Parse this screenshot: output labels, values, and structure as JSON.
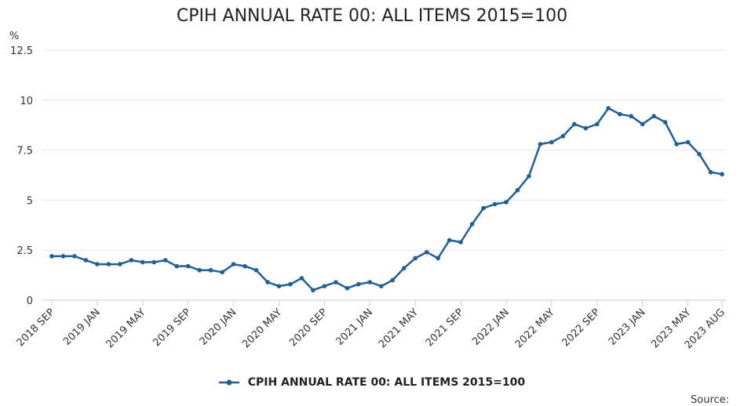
{
  "chart_data": {
    "type": "line",
    "title": "CPIH ANNUAL RATE 00: ALL ITEMS 2015=100",
    "ylabel": "%",
    "ylim": [
      0,
      12.5
    ],
    "yticks": [
      "0",
      "2.5",
      "5",
      "7.5",
      "10",
      "12.5"
    ],
    "xtick_labels": [
      "2018 SEP",
      "2019 JAN",
      "2019 MAY",
      "2019 SEP",
      "2020 JAN",
      "2020 MAY",
      "2020 SEP",
      "2021 JAN",
      "2021 MAY",
      "2021 SEP",
      "2022 JAN",
      "2022 MAY",
      "2022 SEP",
      "2023 JAN",
      "2023 MAY",
      "2023 AUG"
    ],
    "grid": true,
    "legend": "bottom",
    "color": "#206095",
    "series": [
      {
        "name": "CPIH ANNUAL RATE 00: ALL ITEMS 2015=100",
        "x": [
          "2018 SEP",
          "2018 OCT",
          "2018 NOV",
          "2018 DEC",
          "2019 JAN",
          "2019 FEB",
          "2019 MAR",
          "2019 APR",
          "2019 MAY",
          "2019 JUN",
          "2019 JUL",
          "2019 AUG",
          "2019 SEP",
          "2019 OCT",
          "2019 NOV",
          "2019 DEC",
          "2020 JAN",
          "2020 FEB",
          "2020 MAR",
          "2020 APR",
          "2020 MAY",
          "2020 JUN",
          "2020 JUL",
          "2020 AUG",
          "2020 SEP",
          "2020 OCT",
          "2020 NOV",
          "2020 DEC",
          "2021 JAN",
          "2021 FEB",
          "2021 MAR",
          "2021 APR",
          "2021 MAY",
          "2021 JUN",
          "2021 JUL",
          "2021 AUG",
          "2021 SEP",
          "2021 OCT",
          "2021 NOV",
          "2021 DEC",
          "2022 JAN",
          "2022 FEB",
          "2022 MAR",
          "2022 APR",
          "2022 MAY",
          "2022 JUN",
          "2022 JUL",
          "2022 AUG",
          "2022 SEP",
          "2022 OCT",
          "2022 NOV",
          "2022 DEC",
          "2023 JAN",
          "2023 FEB",
          "2023 MAR",
          "2023 APR",
          "2023 MAY",
          "2023 JUN",
          "2023 JUL",
          "2023 AUG"
        ],
        "values": [
          2.2,
          2.2,
          2.2,
          2.0,
          1.8,
          1.8,
          1.8,
          2.0,
          1.9,
          1.9,
          2.0,
          1.7,
          1.7,
          1.5,
          1.5,
          1.4,
          1.8,
          1.7,
          1.5,
          0.9,
          0.7,
          0.8,
          1.1,
          0.5,
          0.7,
          0.9,
          0.6,
          0.8,
          0.9,
          0.7,
          1.0,
          1.6,
          2.1,
          2.4,
          2.1,
          3.0,
          2.9,
          3.8,
          4.6,
          4.8,
          4.9,
          5.5,
          6.2,
          7.8,
          7.9,
          8.2,
          8.8,
          8.6,
          8.8,
          9.6,
          9.3,
          9.2,
          8.8,
          9.2,
          8.9,
          7.8,
          7.9,
          7.3,
          6.4,
          6.3
        ]
      }
    ]
  },
  "source_label": "Source:"
}
